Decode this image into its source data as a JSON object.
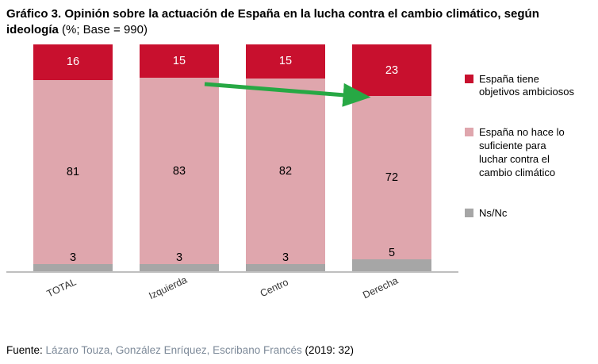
{
  "title": {
    "bold": "Gráfico 3. Opinión sobre la actuación de España en la lucha contra el cambio climático, según ideología",
    "normal": " (%; Base = 990)"
  },
  "chart_data": {
    "type": "bar",
    "stacked": true,
    "orientation": "vertical",
    "categories": [
      "TOTAL",
      "Izquierda",
      "Centro",
      "Derecha"
    ],
    "series": [
      {
        "name": "España tiene objetivos ambiciosos",
        "color": "#c8102e",
        "label_color": "#ffffff",
        "values": [
          16,
          15,
          15,
          23
        ]
      },
      {
        "name": "España no hace lo suficiente para luchar contra  el cambio climático",
        "color": "#dfa6ad",
        "label_color": "#000000",
        "values": [
          81,
          83,
          82,
          72
        ]
      },
      {
        "name": "Ns/Nc",
        "color": "#a6a6a6",
        "label_color": "#000000",
        "values": [
          3,
          3,
          3,
          5
        ]
      }
    ],
    "ylim": [
      0,
      100
    ],
    "grid": false,
    "legend_position": "right",
    "annotations": [
      {
        "type": "arrow",
        "color": "#27a844",
        "from_category": "Izquierda",
        "to_category": "Derecha",
        "meaning": "decline of 'no hace lo suficiente' share from left to right ideology"
      }
    ]
  },
  "footer": {
    "prefix": "Fuente:",
    "authors": "Lázaro Touza, González Enríquez, Escribano Francés",
    "suffix": "(2019: 32)"
  }
}
